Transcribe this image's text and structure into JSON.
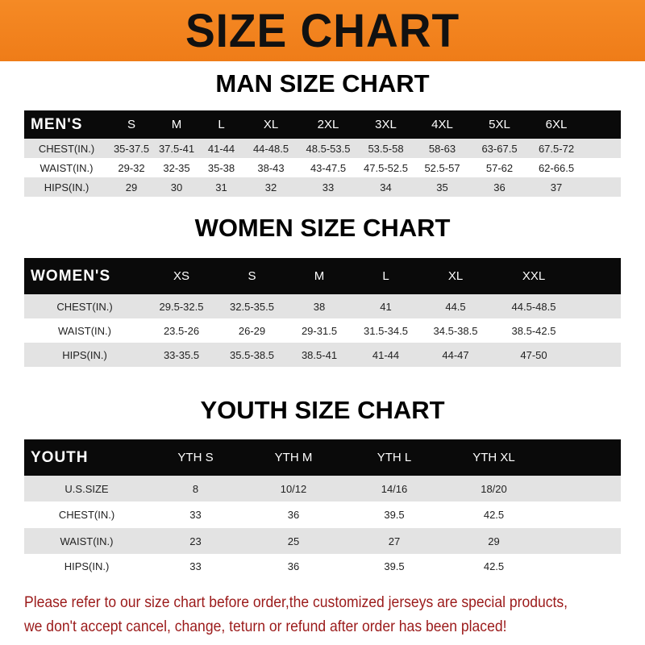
{
  "banner_title": "SIZE CHART",
  "colors": {
    "banner": "#f0821e",
    "header_row": "#0a0a0a",
    "stripe": "#e3e3e3",
    "note": "#9b1a1a"
  },
  "men": {
    "title": "MAN SIZE CHART",
    "header": [
      "MEN'S",
      "S",
      "M",
      "L",
      "XL",
      "2XL",
      "3XL",
      "4XL",
      "5XL",
      "6XL"
    ],
    "rows": [
      [
        "CHEST(IN.)",
        "35-37.5",
        "37.5-41",
        "41-44",
        "44-48.5",
        "48.5-53.5",
        "53.5-58",
        "58-63",
        "63-67.5",
        "67.5-72"
      ],
      [
        "WAIST(IN.)",
        "29-32",
        "32-35",
        "35-38",
        "38-43",
        "43-47.5",
        "47.5-52.5",
        "52.5-57",
        "57-62",
        "62-66.5"
      ],
      [
        "HIPS(IN.)",
        "29",
        "30",
        "31",
        "32",
        "33",
        "34",
        "35",
        "36",
        "37"
      ]
    ]
  },
  "women": {
    "title": "WOMEN SIZE CHART",
    "header": [
      "WOMEN'S",
      "XS",
      "S",
      "M",
      "L",
      "XL",
      "XXL"
    ],
    "rows": [
      [
        "CHEST(IN.)",
        "29.5-32.5",
        "32.5-35.5",
        "38",
        "41",
        "44.5",
        "44.5-48.5"
      ],
      [
        "WAIST(IN.)",
        "23.5-26",
        "26-29",
        "29-31.5",
        "31.5-34.5",
        "34.5-38.5",
        "38.5-42.5"
      ],
      [
        "HIPS(IN.)",
        "33-35.5",
        "35.5-38.5",
        "38.5-41",
        "41-44",
        "44-47",
        "47-50"
      ]
    ]
  },
  "youth": {
    "title": "YOUTH SIZE CHART",
    "header": [
      "YOUTH",
      "YTH S",
      "YTH M",
      "YTH L",
      "YTH XL"
    ],
    "rows": [
      [
        "U.S.SIZE",
        "8",
        "10/12",
        "14/16",
        "18/20"
      ],
      [
        "CHEST(IN.)",
        "33",
        "36",
        "39.5",
        "42.5"
      ],
      [
        "WAIST(IN.)",
        "23",
        "25",
        "27",
        "29"
      ],
      [
        "HIPS(IN.)",
        "33",
        "36",
        "39.5",
        "42.5"
      ]
    ]
  },
  "note": {
    "line1": "Please refer to our size chart before order,the customized jerseys are special products,",
    "line2": "we don't accept cancel, change, teturn or refund after order has been placed!"
  }
}
